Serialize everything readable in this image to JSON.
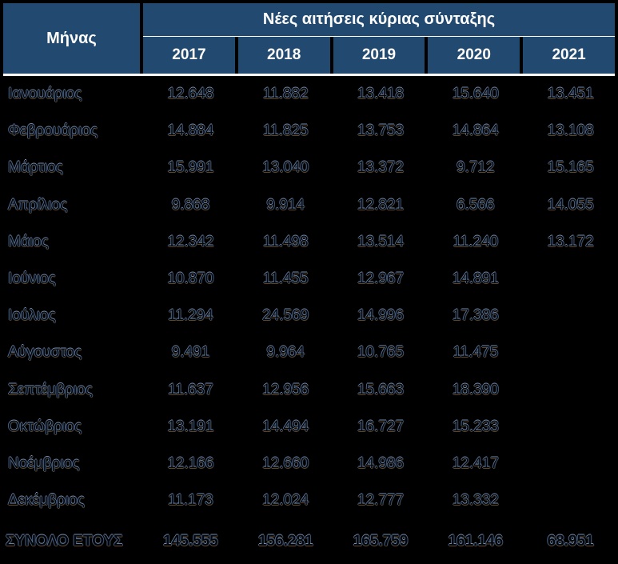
{
  "table": {
    "corner_label": "Μήνας",
    "group_header": "Νέες αιτήσεις κύριας σύνταξης",
    "years": [
      "2017",
      "2018",
      "2019",
      "2020",
      "2021"
    ],
    "rows": [
      {
        "month": "Ιανουάριος",
        "values": [
          "12.648",
          "11.882",
          "13.418",
          "15.640",
          "13.451"
        ]
      },
      {
        "month": "Φεβρουάριος",
        "values": [
          "14.884",
          "11.825",
          "13.753",
          "14.864",
          "13.108"
        ]
      },
      {
        "month": "Μάρτιος",
        "values": [
          "15.991",
          "13.040",
          "13.372",
          "9.712",
          "15.165"
        ]
      },
      {
        "month": "Απρίλιος",
        "values": [
          "9.868",
          "9.914",
          "12.821",
          "6.566",
          "14.055"
        ]
      },
      {
        "month": "Μάιος",
        "values": [
          "12.342",
          "11.498",
          "13.514",
          "11.240",
          "13.172"
        ]
      },
      {
        "month": "Ιούνιος",
        "values": [
          "10.870",
          "11.455",
          "12.967",
          "14.891",
          ""
        ]
      },
      {
        "month": "Ιούλιος",
        "values": [
          "11.294",
          "24.569",
          "14.996",
          "17.386",
          ""
        ]
      },
      {
        "month": "Αύγουστος",
        "values": [
          "9.491",
          "9.964",
          "10.765",
          "11.475",
          ""
        ]
      },
      {
        "month": "Σεπτέμβριος",
        "values": [
          "11.637",
          "12.956",
          "15.663",
          "18.390",
          ""
        ]
      },
      {
        "month": "Οκτώβριος",
        "values": [
          "13.191",
          "14.494",
          "16.727",
          "15.233",
          ""
        ]
      },
      {
        "month": "Νοέμβριος",
        "values": [
          "12.166",
          "12.660",
          "14.986",
          "12.417",
          ""
        ]
      },
      {
        "month": "Δεκέμβριος",
        "values": [
          "11.173",
          "12.024",
          "12.777",
          "13.332",
          ""
        ]
      }
    ],
    "total": {
      "label": "ΣΥΝΟΛΟ ΕΤΟΥΣ",
      "values": [
        "145.555",
        "156.281",
        "165.759",
        "161.146",
        "68.951"
      ]
    }
  },
  "colors": {
    "header_bg": "#22496F",
    "header_text": "#FFFFFF",
    "header_divider": "#FFFFFF",
    "page_bg": "#000000",
    "ghost_fringe_blue": "#7C96B9",
    "ghost_fringe_brown": "#664821"
  },
  "chart_data": {
    "type": "table",
    "title": "Νέες αιτήσεις κύριας σύνταξης",
    "row_label_header": "Μήνας",
    "categories": [
      "Ιανουάριος",
      "Φεβρουάριος",
      "Μάρτιος",
      "Απρίλιος",
      "Μάιος",
      "Ιούνιος",
      "Ιούλιος",
      "Αύγουστος",
      "Σεπτέμβριος",
      "Οκτώβριος",
      "Νοέμβριος",
      "Δεκέμβριος"
    ],
    "series": [
      {
        "name": "2017",
        "values": [
          12648,
          14884,
          15991,
          9868,
          12342,
          10870,
          11294,
          9491,
          11637,
          13191,
          12166,
          11173
        ],
        "total": 145555
      },
      {
        "name": "2018",
        "values": [
          11882,
          11825,
          13040,
          9914,
          11498,
          11455,
          24569,
          9964,
          12956,
          14494,
          12660,
          12024
        ],
        "total": 156281
      },
      {
        "name": "2019",
        "values": [
          13418,
          13753,
          13372,
          12821,
          13514,
          12967,
          14996,
          10765,
          15663,
          16727,
          14986,
          12777
        ],
        "total": 165759
      },
      {
        "name": "2020",
        "values": [
          15640,
          14864,
          9712,
          6566,
          11240,
          14891,
          17386,
          11475,
          18390,
          15233,
          12417,
          13332
        ],
        "total": 161146
      },
      {
        "name": "2021",
        "values": [
          13451,
          13108,
          15165,
          14055,
          13172,
          null,
          null,
          null,
          null,
          null,
          null,
          null
        ],
        "total": 68951
      }
    ],
    "total_row_label": "ΣΥΝΟΛΟ ΕΤΟΥΣ"
  }
}
